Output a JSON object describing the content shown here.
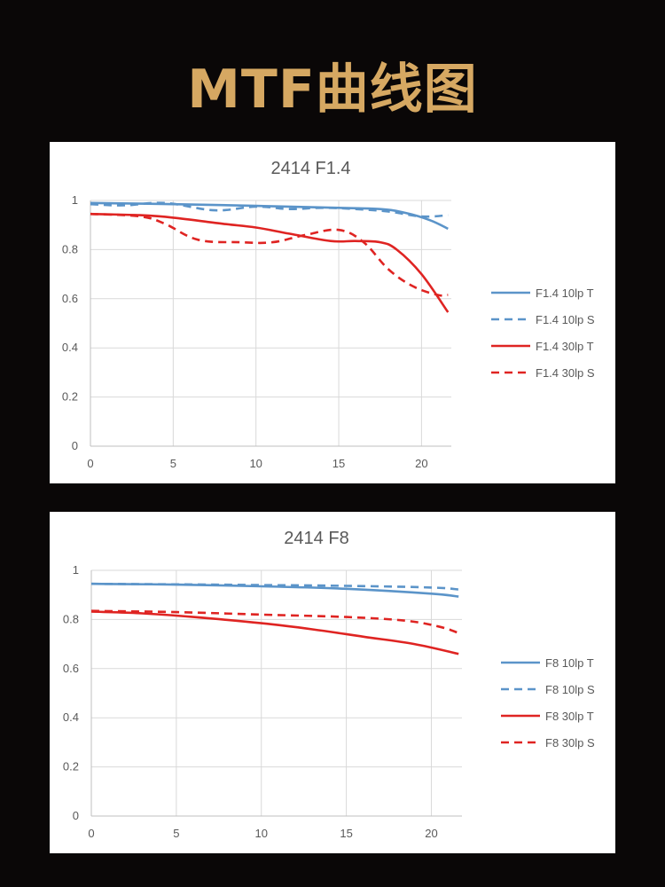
{
  "page": {
    "title": "MTF曲线图"
  },
  "chart_data": [
    {
      "type": "line",
      "title": "2414 F1.4",
      "xlabel": "",
      "ylabel": "",
      "xlim": [
        0,
        21.8
      ],
      "ylim": [
        0,
        1
      ],
      "x_ticks": [
        "0",
        "5",
        "10",
        "15",
        "20"
      ],
      "y_ticks": [
        "0",
        "0.2",
        "0.4",
        "0.6",
        "0.8",
        "1"
      ],
      "grid": true,
      "legend": "right",
      "series": [
        {
          "name": "F1.4 10lp T",
          "color": "#5b94c9",
          "dash": false,
          "x": [
            0,
            5,
            10,
            15,
            17.5,
            19,
            20.5,
            21.6
          ],
          "y": [
            0.99,
            0.985,
            0.978,
            0.97,
            0.965,
            0.95,
            0.92,
            0.885
          ]
        },
        {
          "name": "F1.4 10lp S",
          "color": "#5b94c9",
          "dash": true,
          "x": [
            0,
            2,
            4.5,
            7.5,
            10,
            12,
            14,
            16,
            18,
            20,
            21.6
          ],
          "y": [
            0.985,
            0.98,
            0.99,
            0.96,
            0.975,
            0.965,
            0.97,
            0.965,
            0.955,
            0.935,
            0.94
          ]
        },
        {
          "name": "F1.4 30lp T",
          "color": "#df2422",
          "dash": false,
          "x": [
            0,
            3,
            5,
            8,
            10,
            12,
            14.5,
            16,
            17.5,
            18.5,
            20,
            21.6
          ],
          "y": [
            0.945,
            0.94,
            0.93,
            0.905,
            0.89,
            0.865,
            0.835,
            0.835,
            0.83,
            0.8,
            0.7,
            0.545
          ]
        },
        {
          "name": "F1.4 30lp S",
          "color": "#df2422",
          "dash": true,
          "x": [
            0,
            3,
            4.5,
            6.5,
            9,
            11,
            13,
            15,
            16.5,
            18,
            19.5,
            21,
            21.6
          ],
          "y": [
            0.945,
            0.935,
            0.905,
            0.84,
            0.83,
            0.83,
            0.86,
            0.88,
            0.83,
            0.72,
            0.65,
            0.615,
            0.615
          ]
        }
      ]
    },
    {
      "type": "line",
      "title": "2414 F8",
      "xlabel": "",
      "ylabel": "",
      "xlim": [
        0,
        21.8
      ],
      "ylim": [
        0,
        1
      ],
      "x_ticks": [
        "0",
        "5",
        "10",
        "15",
        "20"
      ],
      "y_ticks": [
        "0",
        "0.2",
        "0.4",
        "0.6",
        "0.8",
        "1"
      ],
      "grid": true,
      "legend": "right",
      "series": [
        {
          "name": "F8 10lp T",
          "color": "#5b94c9",
          "dash": false,
          "x": [
            0,
            5,
            10,
            15,
            20,
            21.6
          ],
          "y": [
            0.945,
            0.942,
            0.935,
            0.925,
            0.905,
            0.893
          ]
        },
        {
          "name": "F8 10lp S",
          "color": "#5b94c9",
          "dash": true,
          "x": [
            0,
            5,
            10,
            15,
            20,
            21.6
          ],
          "y": [
            0.945,
            0.943,
            0.94,
            0.937,
            0.93,
            0.922
          ]
        },
        {
          "name": "F8 30lp T",
          "color": "#df2422",
          "dash": false,
          "x": [
            0,
            3,
            6,
            10,
            13,
            16,
            19,
            21.6
          ],
          "y": [
            0.832,
            0.825,
            0.81,
            0.785,
            0.76,
            0.73,
            0.7,
            0.66
          ]
        },
        {
          "name": "F8 30lp S",
          "color": "#df2422",
          "dash": true,
          "x": [
            0,
            5,
            10,
            15,
            18.5,
            20.5,
            21.6
          ],
          "y": [
            0.835,
            0.83,
            0.82,
            0.81,
            0.795,
            0.77,
            0.745
          ]
        }
      ]
    }
  ]
}
